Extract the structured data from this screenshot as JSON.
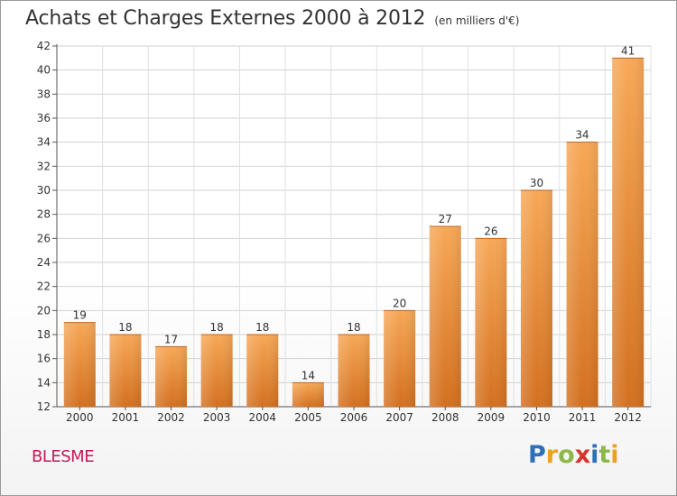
{
  "title": "Achats et Charges Externes 2000 à 2012",
  "subtitle": "(en milliers d'€)",
  "commune": "BLESME",
  "logo": {
    "letters": [
      "P",
      "r",
      "o",
      "x",
      "i",
      "t",
      "i"
    ],
    "colors": [
      "#2d6fb8",
      "#f0a020",
      "#8cb84a",
      "#d6342e",
      "#2d6fb8",
      "#8cb84a",
      "#f0a020"
    ]
  },
  "chart_data": {
    "type": "bar",
    "categories": [
      "2000",
      "2001",
      "2002",
      "2003",
      "2004",
      "2005",
      "2006",
      "2007",
      "2008",
      "2009",
      "2010",
      "2011",
      "2012"
    ],
    "values": [
      19,
      18,
      17,
      18,
      18,
      14,
      18,
      20,
      27,
      26,
      30,
      34,
      41
    ],
    "title": "Achats et Charges Externes 2000 à 2012",
    "subtitle": "(en milliers d'€)",
    "xlabel": "",
    "ylabel": "",
    "ylim": [
      12,
      42
    ],
    "yticks": [
      12,
      14,
      16,
      18,
      20,
      22,
      24,
      26,
      28,
      30,
      32,
      34,
      36,
      38,
      40,
      42
    ],
    "grid": true,
    "bar_color": "#f29b45"
  }
}
